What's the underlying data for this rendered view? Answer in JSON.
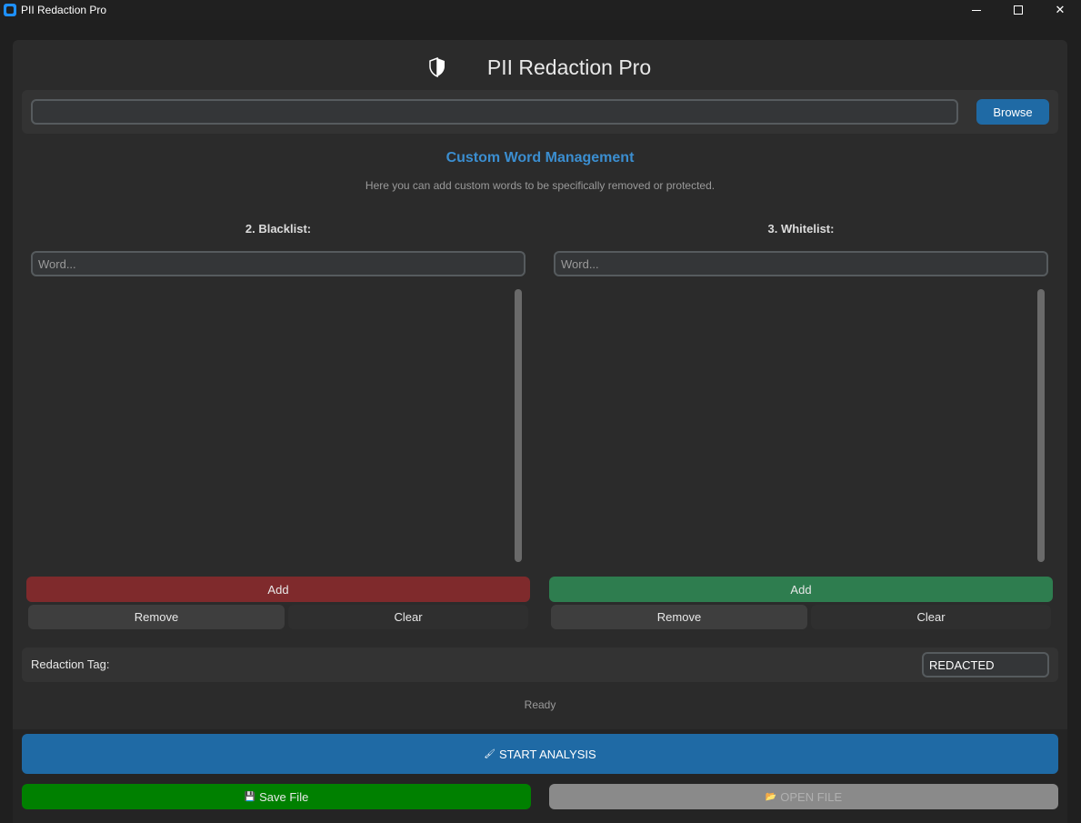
{
  "window": {
    "title": "PII Redaction Pro",
    "minimize_glyph": "",
    "close_glyph": "✕"
  },
  "header": {
    "title": "PII Redaction Pro",
    "icon": "shield-icon"
  },
  "file": {
    "path_value": "",
    "path_placeholder": "",
    "browse_label": "Browse"
  },
  "custom_words": {
    "title": "Custom Word Management",
    "subtitle": "Here you can add custom words to be specifically removed or protected."
  },
  "blacklist": {
    "label": "2. Blacklist:",
    "input_placeholder": "Word...",
    "items": [],
    "add_label": "Add",
    "remove_label": "Remove",
    "clear_label": "Clear",
    "add_color": "#7f2a2c"
  },
  "whitelist": {
    "label": "3. Whitelist:",
    "input_placeholder": "Word...",
    "items": [],
    "add_label": "Add",
    "remove_label": "Remove",
    "clear_label": "Clear",
    "add_color": "#2e7d4f"
  },
  "redaction_tag": {
    "label": "Redaction Tag:",
    "value": "REDACTED"
  },
  "status": {
    "text": "Ready"
  },
  "actions": {
    "start_label": "START ANALYSIS",
    "start_icon": "brush-icon",
    "save_label": "Save File",
    "save_icon": "floppy-icon",
    "open_label": "OPEN FILE",
    "open_icon": "folder-icon",
    "open_enabled": false
  },
  "colors": {
    "accent": "#1f6aa5",
    "section_title": "#3b8ed0",
    "save": "#008000",
    "disabled": "#8a8a8a"
  }
}
